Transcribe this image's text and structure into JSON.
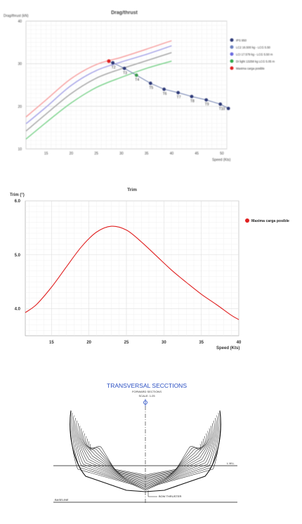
{
  "chart_data": [
    {
      "type": "line",
      "title": "Drag/thrust",
      "ylabel": "Drag/thrust (kN)",
      "xlabel": "Speed (Kts)",
      "xlim": [
        11,
        51
      ],
      "ylim": [
        10,
        40
      ],
      "xticks": [
        15,
        20,
        25,
        30,
        35,
        40,
        45,
        50
      ],
      "yticks": [
        10,
        20,
        30,
        40
      ],
      "grid": true,
      "legend_position": "right",
      "colors": {
        "series1": "#f7a1a1",
        "series2": "#a7a5e8",
        "series3": "#a8a8a8",
        "series4": "#7fd48f",
        "thrust": "#2e3a78"
      },
      "series": [
        {
          "name": "IPS 950",
          "color": "#2e3a78",
          "x": [
            27.5,
            28.3,
            30.6,
            33.0,
            35.8,
            38.5,
            41.3,
            44.0,
            46.9,
            49.7,
            51.3
          ],
          "y": [
            30.5,
            30.2,
            28.9,
            27.3,
            25.4,
            24.0,
            23.2,
            22.3,
            21.5,
            20.5,
            19.5
          ]
        },
        {
          "name": "LC2 16.500 kg - LCG 5.50",
          "color": "#f7a1a1",
          "x": [
            11,
            15,
            20,
            25,
            30,
            35,
            40
          ],
          "y": [
            17.5,
            21.5,
            26.5,
            29.8,
            31.5,
            33.4,
            35.4
          ]
        },
        {
          "name": "LCI 17.579 kg - LCG 5.50 m",
          "color": "#a7a5e8",
          "x": [
            11,
            15,
            20,
            25,
            30,
            35,
            40
          ],
          "y": [
            15.9,
            19.8,
            24.9,
            28.4,
            30.4,
            32.2,
            34.2
          ]
        },
        {
          "name": "",
          "color": "#a8a8a8",
          "x": [
            11,
            15,
            20,
            25,
            30,
            35,
            40
          ],
          "y": [
            14.2,
            18.2,
            23.0,
            26.6,
            28.8,
            30.7,
            32.6
          ]
        },
        {
          "name": "DI light 13258 kg LCG 5.05 m",
          "color": "#7fd48f",
          "x": [
            11,
            15,
            20,
            25,
            30,
            35,
            40
          ],
          "y": [
            12.3,
            16.2,
            20.8,
            24.4,
            26.8,
            28.9,
            30.6
          ]
        },
        {
          "name": "Maxima carga posible",
          "color": "#e02020",
          "x": [
            27.5
          ],
          "y": [
            30.6
          ]
        }
      ],
      "point_labels": [
        {
          "text": "T2",
          "x": 28.3,
          "y": 30.2
        },
        {
          "text": "T3",
          "x": 30.6,
          "y": 28.9
        },
        {
          "text": "T4",
          "x": 33.0,
          "y": 27.3
        },
        {
          "text": "T5",
          "x": 35.8,
          "y": 25.4
        },
        {
          "text": "T6",
          "x": 38.5,
          "y": 24.0
        },
        {
          "text": "T7",
          "x": 41.3,
          "y": 23.2
        },
        {
          "text": "T8",
          "x": 44.0,
          "y": 22.3
        },
        {
          "text": "T9",
          "x": 46.9,
          "y": 21.5
        },
        {
          "text": "T10",
          "x": 49.7,
          "y": 20.5
        }
      ]
    },
    {
      "type": "line",
      "title": "Trim",
      "ylabel": "Trim (°)",
      "xlabel": "Speed (Kts)",
      "xlim": [
        11.5,
        40
      ],
      "ylim": [
        3.5,
        6.0
      ],
      "xticks": [
        15,
        20,
        25,
        30,
        35,
        40
      ],
      "yticks": [
        4.0,
        5.0,
        6.0
      ],
      "ytick_labels": [
        "4.0",
        "5.0",
        "6.0"
      ],
      "grid": true,
      "legend_position": "right",
      "series": [
        {
          "name": "Maxima carga posible",
          "color": "#e02020",
          "x": [
            11.5,
            13,
            15,
            17,
            19,
            21,
            23,
            25,
            27,
            29,
            31,
            33,
            35,
            37,
            39,
            40
          ],
          "y": [
            3.93,
            4.08,
            4.4,
            4.78,
            5.15,
            5.42,
            5.53,
            5.46,
            5.24,
            4.98,
            4.72,
            4.49,
            4.27,
            4.08,
            3.88,
            3.8
          ]
        }
      ]
    }
  ],
  "sections": {
    "title": "TRANSVERSAL SECCTIONS",
    "subtitle": "FORWARD SECTIONS",
    "scale": "SCALE: 1:25",
    "lwl_label": "L.W.L.",
    "thruster_label": "BOW THRUSTER",
    "baseline_label": "BASELINE"
  }
}
